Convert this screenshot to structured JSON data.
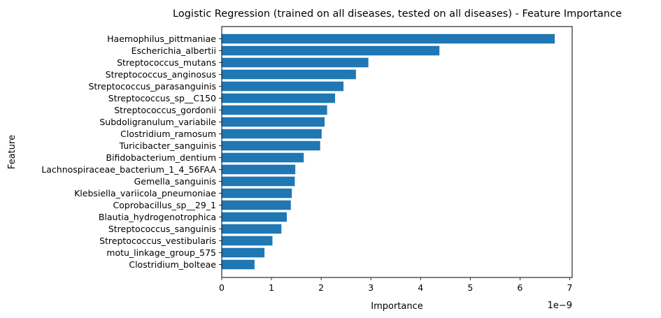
{
  "chart_data": {
    "type": "bar",
    "orientation": "horizontal",
    "title": "Logistic Regression (trained on all diseases, tested on all diseases) -  Feature Importance",
    "xlabel": "Importance",
    "ylabel": "Feature",
    "x_scale_label": "1e−9",
    "xlim": [
      0,
      7.05
    ],
    "xticks": [
      0,
      1,
      2,
      3,
      4,
      5,
      6,
      7
    ],
    "bar_color": "#1f77b4",
    "grid": false,
    "legend": "none",
    "categories": [
      "Haemophilus_pittmaniae",
      "Escherichia_albertii",
      "Streptococcus_mutans",
      "Streptococcus_anginosus",
      "Streptococcus_parasanguinis",
      "Streptococcus_sp__C150",
      "Streptococcus_gordonii",
      "Subdoligranulum_variabile",
      "Clostridium_ramosum",
      "Turicibacter_sanguinis",
      "Bifidobacterium_dentium",
      "Lachnospiraceae_bacterium_1_4_56FAA",
      "Gemella_sanguinis",
      "Klebsiella_variicola_pneumoniae",
      "Coprobacillus_sp__29_1",
      "Blautia_hydrogenotrophica",
      "Streptococcus_sanguinis",
      "Streptococcus_vestibularis",
      "motu_linkage_group_575",
      "Clostridium_bolteae"
    ],
    "values": [
      6.7,
      4.38,
      2.95,
      2.7,
      2.45,
      2.28,
      2.12,
      2.07,
      2.01,
      1.98,
      1.65,
      1.48,
      1.47,
      1.41,
      1.39,
      1.31,
      1.2,
      1.02,
      0.86,
      0.66
    ]
  }
}
